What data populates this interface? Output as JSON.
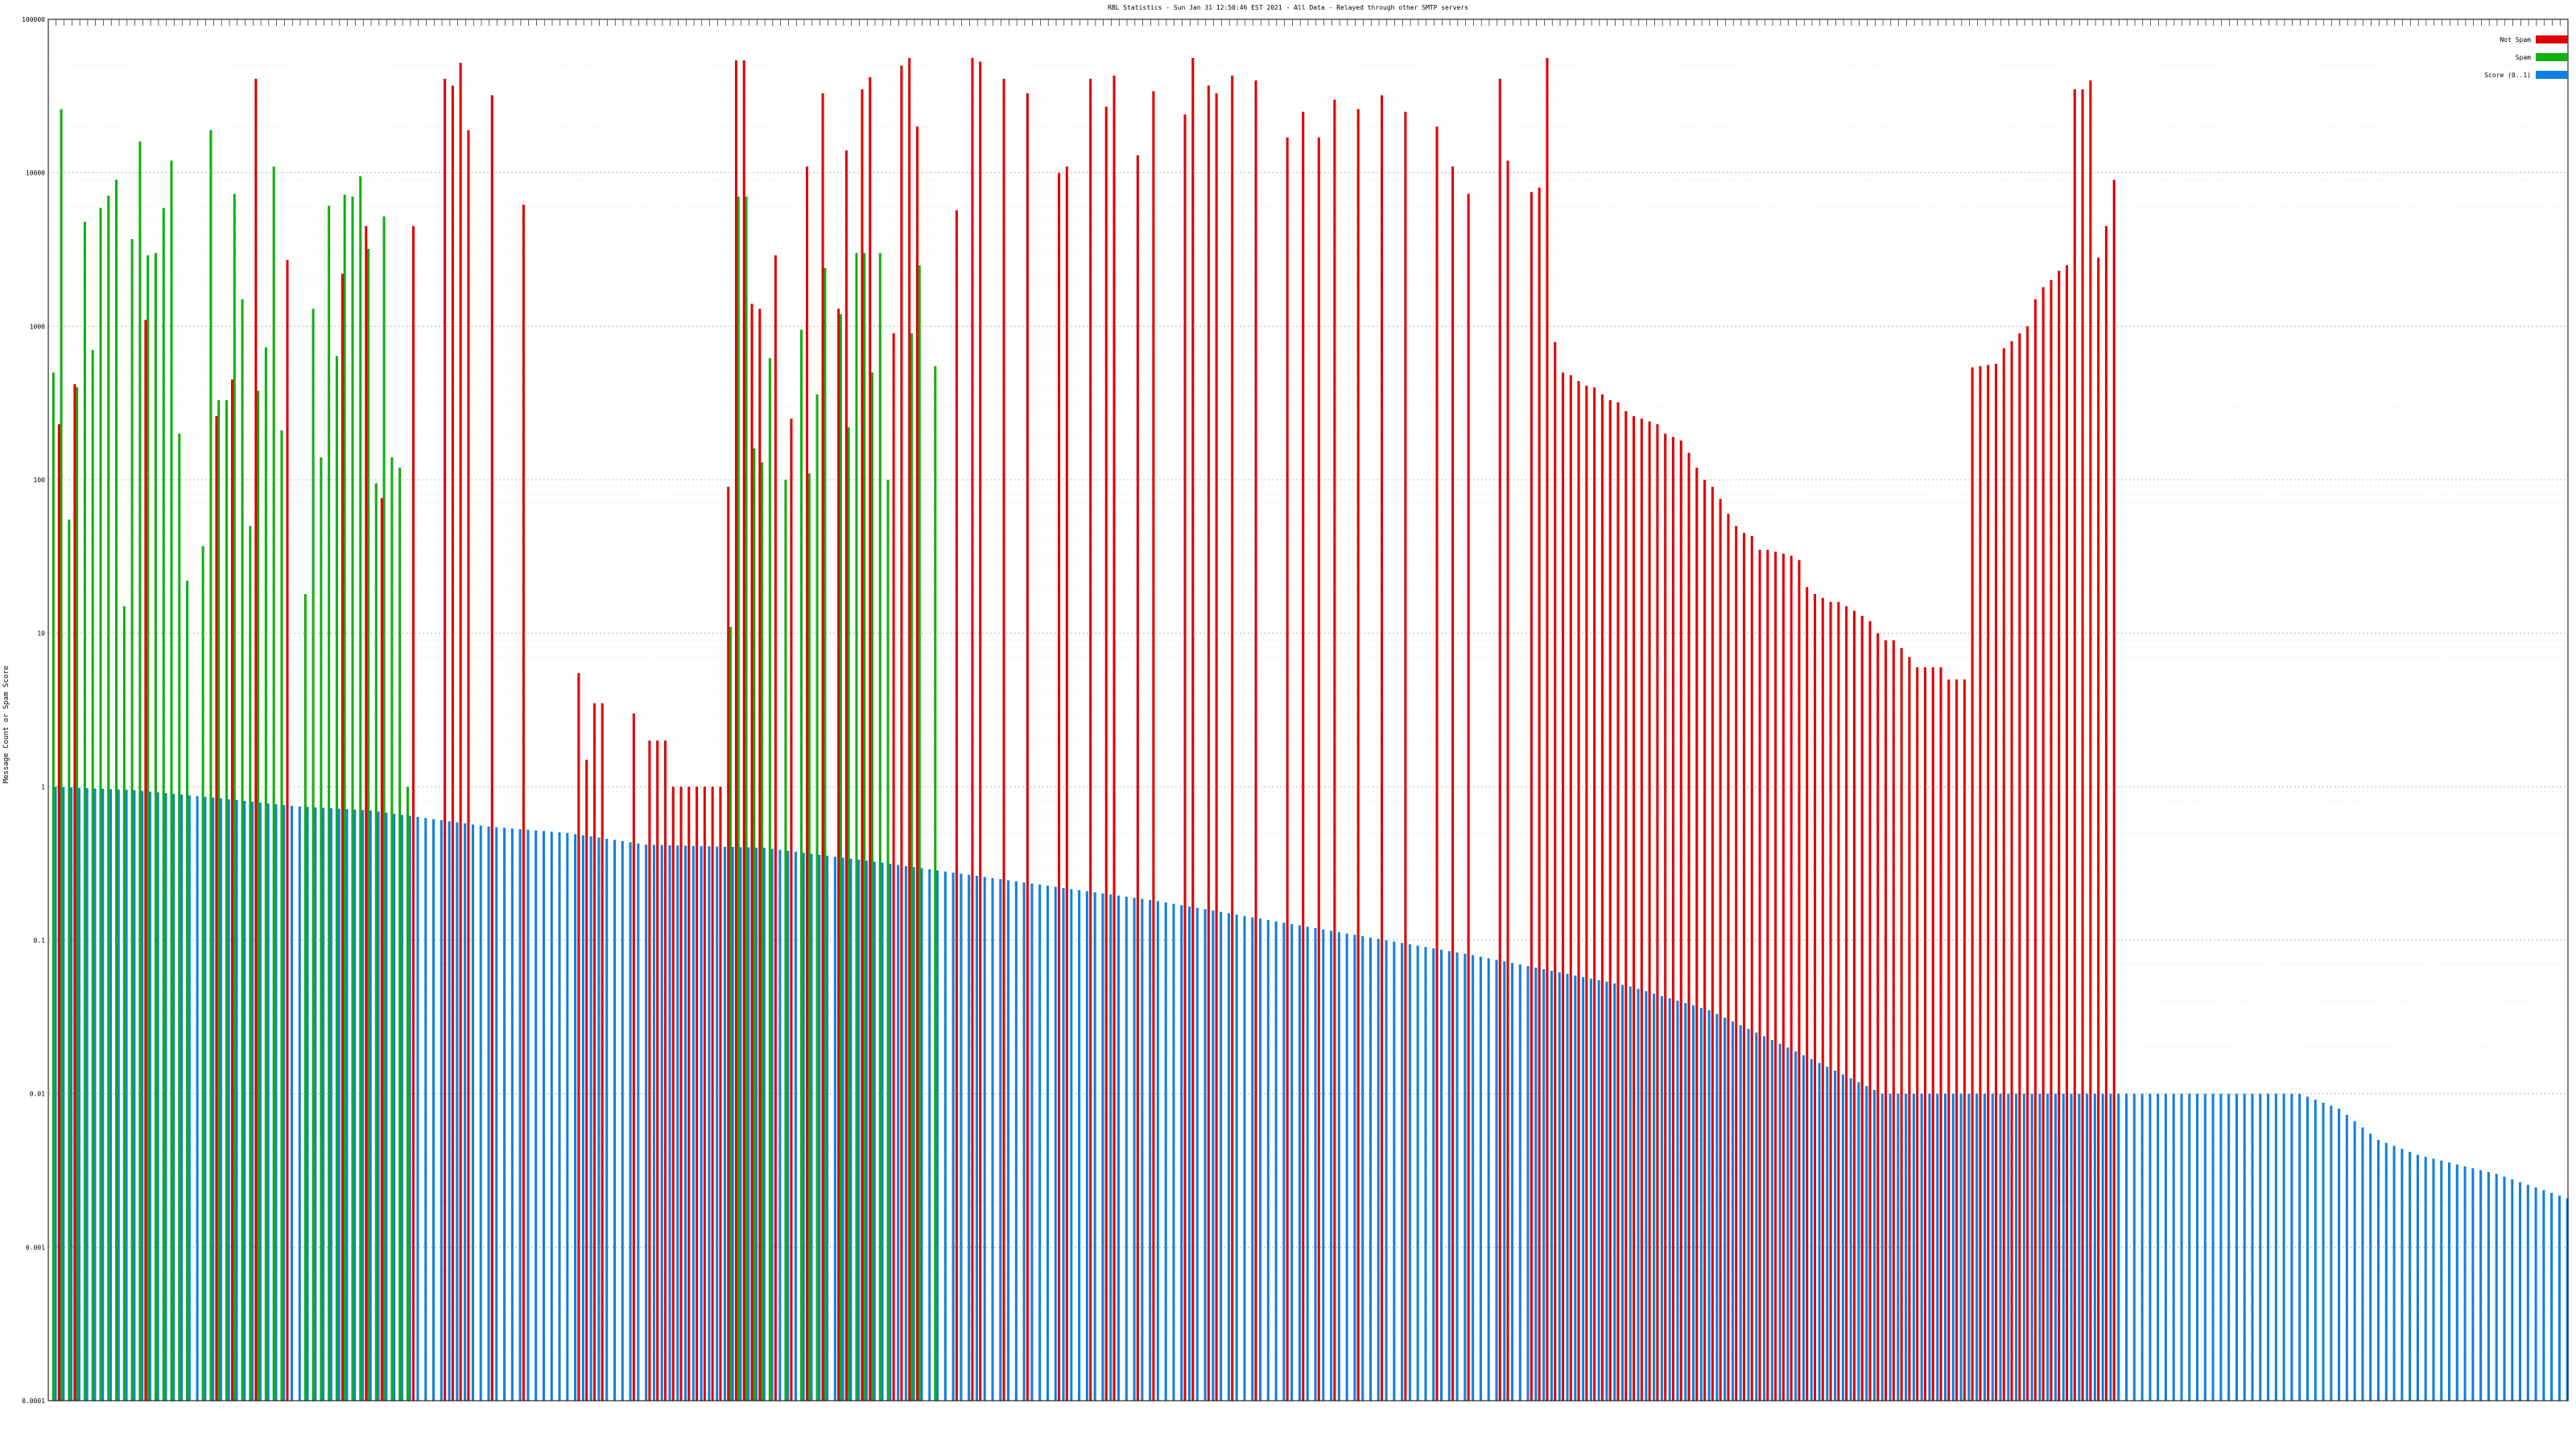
{
  "chart_data": {
    "type": "bar",
    "title": "RBL Statistics - Sun Jan 31 12:50:46 EST 2021 - All Data - Relayed through other SMTP servers",
    "xlabel": "",
    "ylabel": "Message Count or Spam Score",
    "yscale": "log",
    "ylim": [
      0.0001,
      100000
    ],
    "y_tick_labels": [
      "0.0001",
      "0.001",
      "0.01",
      "0.1",
      "1",
      "10",
      "100",
      "1000",
      "10000",
      "100000"
    ],
    "grid": true,
    "legend_position": "top-right",
    "legend": [
      {
        "name": "Not Spam",
        "color": "#e00000"
      },
      {
        "name": "Spam",
        "color": "#10b010"
      },
      {
        "name": "Score (0..1)",
        "color": "#1080e0"
      }
    ],
    "category_count": 250,
    "series": [
      {
        "name": "Not Spam",
        "color": "#e00000",
        "values": [
          0,
          230,
          0,
          420,
          0,
          0,
          0,
          0,
          0,
          0,
          0,
          0,
          1100,
          0,
          0,
          0,
          0,
          0,
          0,
          0,
          0,
          260,
          0,
          450,
          0,
          0,
          41000,
          0,
          0,
          0,
          2700,
          0,
          0,
          0,
          0,
          0,
          0,
          2200,
          0,
          0,
          4500,
          0,
          76,
          0,
          0,
          0,
          4500,
          0,
          0,
          0,
          41000,
          37000,
          52000,
          19000,
          0,
          0,
          32000,
          0,
          0,
          0,
          6200,
          0,
          0,
          0,
          0,
          0,
          0,
          5.5,
          1.5,
          3.5,
          3.5,
          0,
          0,
          0,
          3.0,
          0,
          2.0,
          2.0,
          2.0,
          1.0,
          1.0,
          1.0,
          1.0,
          1.0,
          1.0,
          1.0,
          90,
          54000,
          54000,
          1400,
          1300,
          0,
          2900,
          0,
          250,
          0,
          11000,
          0,
          33000,
          0,
          1300,
          14000,
          0,
          35000,
          42000,
          0,
          0,
          900,
          50000,
          56000,
          20000,
          0,
          0,
          0,
          0,
          5700,
          0,
          56000,
          53000,
          0,
          0,
          41000,
          0,
          0,
          33000,
          0,
          0,
          0,
          10000,
          11000,
          0,
          0,
          41000,
          0,
          27000,
          43000,
          0,
          0,
          13000,
          0,
          34000,
          0,
          0,
          0,
          24000,
          56000,
          0,
          37000,
          33000,
          0,
          43000,
          0,
          0,
          40000,
          0,
          0,
          0,
          17000,
          0,
          25000,
          0,
          17000,
          0,
          30000,
          0,
          0,
          26000,
          0,
          0,
          32000,
          0,
          0,
          25000,
          0,
          0,
          0,
          20000,
          0,
          11000,
          0,
          7300,
          0,
          0,
          0,
          41000,
          12000,
          0,
          0,
          7500,
          8000,
          56000,
          790,
          500,
          480,
          440,
          410,
          400,
          360,
          330,
          320,
          280,
          260,
          250,
          240,
          230,
          200,
          190,
          180,
          150,
          120,
          100,
          90,
          75,
          60,
          50,
          45,
          43,
          35,
          35,
          34,
          33,
          32,
          30,
          20,
          18,
          17,
          16,
          16,
          15,
          14,
          13,
          12,
          10,
          9,
          9,
          8,
          7,
          6,
          6,
          6,
          6,
          5,
          5,
          5
        ],
        "values_note_tail": [
          540,
          550,
          560,
          570,
          720,
          800,
          900,
          1000,
          1500,
          1800,
          2000,
          2300,
          2500,
          35000,
          35000,
          40000,
          2800,
          4500,
          9000
        ]
      },
      {
        "name": "Spam",
        "color": "#10b010",
        "values": [
          500,
          26000,
          55,
          400,
          4800,
          700,
          5900,
          7100,
          9000,
          15,
          3700,
          16000,
          2900,
          3000,
          5900,
          12000,
          200,
          22,
          0,
          37,
          19000,
          330,
          330,
          7300,
          1500,
          50,
          380,
          730,
          11000,
          210,
          0,
          0,
          18,
          1300,
          140,
          6100,
          640,
          7200,
          7000,
          9500,
          3200,
          95,
          5200,
          140,
          120,
          1.0,
          0,
          0,
          0,
          0,
          0,
          0,
          0,
          0,
          0,
          0,
          0,
          0,
          0,
          0,
          0,
          0,
          0,
          0,
          0,
          0,
          0,
          0,
          0,
          0,
          0,
          0,
          0,
          0,
          0,
          0,
          0,
          0,
          0,
          0,
          0,
          0,
          0,
          0,
          0,
          0,
          11,
          7000,
          7000,
          160,
          130,
          620,
          0,
          100,
          0,
          950,
          110,
          360,
          2400,
          0,
          1200,
          220,
          3000,
          3000,
          500,
          3000,
          100,
          0,
          0,
          900,
          2500,
          0,
          550,
          0,
          0,
          0,
          0,
          0,
          0,
          0,
          0,
          0,
          0,
          0,
          0,
          0,
          0,
          0,
          0,
          0,
          0,
          0,
          0,
          0,
          0,
          0,
          0,
          0,
          0,
          0,
          0,
          0,
          0,
          0,
          0,
          0,
          0,
          0,
          0,
          0,
          0,
          0,
          0,
          0,
          0,
          0,
          0,
          0,
          0,
          0,
          0,
          0,
          0,
          0,
          0,
          0,
          0,
          0,
          0,
          0,
          0,
          0,
          0,
          0,
          0,
          0,
          0,
          0,
          0,
          0,
          0,
          0,
          0,
          0,
          0,
          0,
          0,
          0,
          0,
          0,
          0,
          0,
          0,
          0,
          0,
          0,
          0,
          0,
          0,
          0,
          0,
          0,
          0,
          0,
          0,
          0,
          0,
          0,
          0,
          0,
          0,
          0,
          0,
          0,
          0,
          0,
          0,
          0,
          0,
          0,
          0,
          0,
          0,
          0,
          0,
          0,
          0,
          0,
          0,
          0,
          0,
          0,
          0,
          0,
          0,
          0,
          0,
          0,
          0,
          0
        ]
      },
      {
        "name": "Score (0..1)",
        "color": "#1080e0",
        "score_profile": [
          [
            0,
            1.0
          ],
          [
            10,
            0.95
          ],
          [
            20,
            0.85
          ],
          [
            30,
            0.75
          ],
          [
            40,
            0.7
          ],
          [
            55,
            0.55
          ],
          [
            65,
            0.5
          ],
          [
            75,
            0.42
          ],
          [
            90,
            0.4
          ],
          [
            105,
            0.32
          ],
          [
            120,
            0.25
          ],
          [
            140,
            0.18
          ],
          [
            160,
            0.12
          ],
          [
            180,
            0.08
          ],
          [
            200,
            0.05
          ],
          [
            210,
            0.035
          ],
          [
            220,
            0.02
          ],
          [
            232,
            0.01
          ],
          [
            262,
            0.01
          ],
          [
            285,
            0.01
          ],
          [
            290,
            0.008
          ],
          [
            295,
            0.005
          ],
          [
            300,
            0.004
          ],
          [
            310,
            0.003
          ],
          [
            320,
            0.002
          ],
          [
            325,
            0.0015
          ],
          [
            330,
            0.0003
          ]
        ]
      }
    ],
    "categories_note": "x-axis labels are dense rotated RBL names with time windows; unreadable at this resolution"
  }
}
